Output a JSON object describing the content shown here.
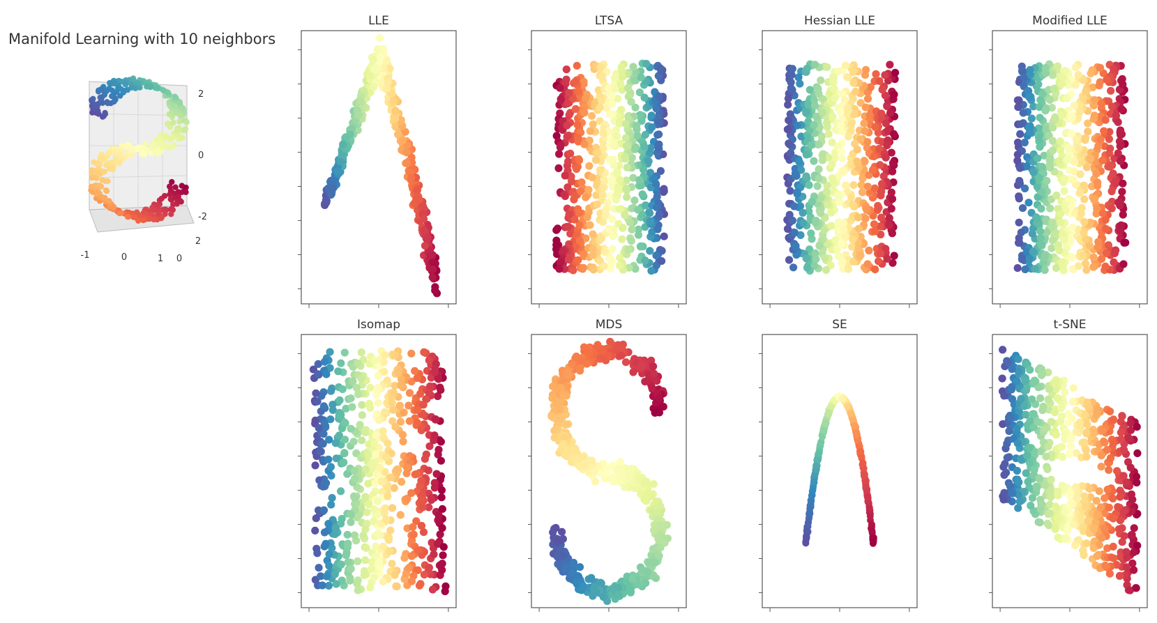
{
  "title": "Manifold Learning with 10 neighbors",
  "colormap": [
    "#9e0142",
    "#d53e4f",
    "#f46d43",
    "#fdae61",
    "#fee08b",
    "#ffffbf",
    "#e6f598",
    "#abdda4",
    "#66c2a5",
    "#3288bd",
    "#5e4fa2"
  ],
  "s_curve": {
    "x_ticks": [
      "-1",
      "0",
      "1"
    ],
    "y_ticks": [
      "0",
      "2"
    ],
    "z_ticks": [
      "2",
      "0",
      "-2"
    ]
  },
  "chart_data": [
    {
      "type": "scatter",
      "title": "LLE",
      "embedding": "arch"
    },
    {
      "type": "scatter",
      "title": "LTSA",
      "embedding": "rect"
    },
    {
      "type": "scatter",
      "title": "Hessian LLE",
      "embedding": "rect-reversed"
    },
    {
      "type": "scatter",
      "title": "Modified LLE",
      "embedding": "rect-reversed"
    },
    {
      "type": "scatter",
      "title": "Isomap",
      "embedding": "rect-waist"
    },
    {
      "type": "scatter",
      "title": "MDS",
      "embedding": "s-shape"
    },
    {
      "type": "scatter",
      "title": "SE",
      "embedding": "thin-arch"
    },
    {
      "type": "scatter",
      "title": "t-SNE",
      "embedding": "folded-sheet"
    }
  ]
}
